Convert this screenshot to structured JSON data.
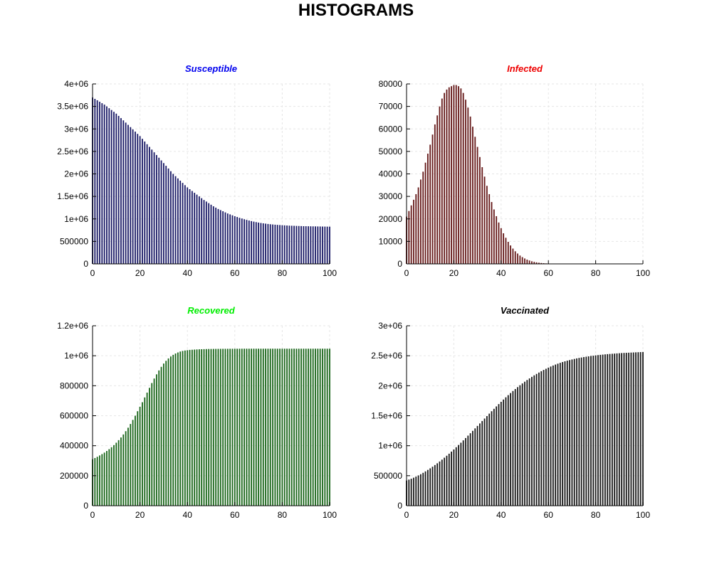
{
  "figure": {
    "title": "HISTOGRAMS"
  },
  "chart_data": [
    {
      "type": "bar",
      "title": "Susceptible",
      "title_color": "#0000ee",
      "bar_color": "#1a1a66",
      "xlabel": "",
      "ylabel": "",
      "xlim": [
        0,
        100
      ],
      "ylim": [
        0,
        4000000
      ],
      "xticks": [
        "0",
        "20",
        "40",
        "60",
        "80",
        "100"
      ],
      "yticks": [
        "0",
        "500000",
        "1e+06",
        "1.5e+06",
        "2e+06",
        "2.5e+06",
        "3e+06",
        "3.5e+06",
        "4e+06"
      ],
      "grid": true,
      "x": [
        0,
        1,
        2,
        3,
        4,
        5,
        6,
        7,
        8,
        9,
        10,
        11,
        12,
        13,
        14,
        15,
        16,
        17,
        18,
        19,
        20,
        21,
        22,
        23,
        24,
        25,
        26,
        27,
        28,
        29,
        30,
        31,
        32,
        33,
        34,
        35,
        36,
        37,
        38,
        39,
        40,
        41,
        42,
        43,
        44,
        45,
        46,
        47,
        48,
        49,
        50,
        51,
        52,
        53,
        54,
        55,
        56,
        57,
        58,
        59,
        60,
        61,
        62,
        63,
        64,
        65,
        66,
        67,
        68,
        69,
        70,
        71,
        72,
        73,
        74,
        75,
        76,
        77,
        78,
        79,
        80,
        81,
        82,
        83,
        84,
        85,
        86,
        87,
        88,
        89,
        90,
        91,
        92,
        93,
        94,
        95,
        96,
        97,
        98,
        99,
        100
      ],
      "values": [
        3700000,
        3668000,
        3636000,
        3604000,
        3572000,
        3540000,
        3500000,
        3460000,
        3420000,
        3380000,
        3340000,
        3290000,
        3240000,
        3190000,
        3140000,
        3090000,
        3040000,
        2990000,
        2940000,
        2890000,
        2840000,
        2780000,
        2720000,
        2660000,
        2600000,
        2540000,
        2480000,
        2420000,
        2360000,
        2300000,
        2240000,
        2180000,
        2120000,
        2060000,
        2000000,
        1950000,
        1900000,
        1850000,
        1800000,
        1750000,
        1700000,
        1660000,
        1620000,
        1580000,
        1540000,
        1500000,
        1460000,
        1420000,
        1385000,
        1350000,
        1315000,
        1280000,
        1250000,
        1220000,
        1195000,
        1170000,
        1145000,
        1120000,
        1100000,
        1080000,
        1060000,
        1042000,
        1024000,
        1008000,
        992000,
        978000,
        964000,
        951000,
        939000,
        928000,
        918000,
        909000,
        901000,
        894000,
        887000,
        881000,
        876000,
        871000,
        867000,
        863000,
        859000,
        856000,
        853000,
        850000,
        848000,
        846000,
        844000,
        842000,
        840000,
        838000,
        837000,
        836000,
        835000,
        834000,
        833000,
        832000,
        831000,
        830000,
        829000,
        828000,
        827000
      ]
    },
    {
      "type": "bar",
      "title": "Infected",
      "title_color": "#ee0000",
      "bar_color": "#661a1a",
      "xlabel": "",
      "ylabel": "",
      "xlim": [
        0,
        100
      ],
      "ylim": [
        0,
        80000
      ],
      "xticks": [
        "0",
        "20",
        "40",
        "60",
        "80",
        "100"
      ],
      "yticks": [
        "0",
        "10000",
        "20000",
        "30000",
        "40000",
        "50000",
        "60000",
        "70000",
        "80000"
      ],
      "grid": true,
      "x": [
        0,
        1,
        2,
        3,
        4,
        5,
        6,
        7,
        8,
        9,
        10,
        11,
        12,
        13,
        14,
        15,
        16,
        17,
        18,
        19,
        20,
        21,
        22,
        23,
        24,
        25,
        26,
        27,
        28,
        29,
        30,
        31,
        32,
        33,
        34,
        35,
        36,
        37,
        38,
        39,
        40,
        41,
        42,
        43,
        44,
        45,
        46,
        47,
        48,
        49,
        50,
        51,
        52,
        53,
        54,
        55,
        56,
        57,
        58,
        59,
        60,
        61,
        62,
        63,
        64,
        65,
        66,
        67,
        68,
        69,
        70,
        71,
        72,
        73,
        74,
        75,
        76,
        77,
        78,
        79,
        80,
        81,
        82,
        83,
        84,
        85,
        86,
        87,
        88,
        89,
        90,
        91,
        92,
        93,
        94,
        95,
        96,
        97,
        98,
        99,
        100
      ],
      "values": [
        21000,
        23500,
        26000,
        28500,
        31000,
        34000,
        37500,
        41000,
        45000,
        49000,
        53000,
        57500,
        62000,
        66000,
        70000,
        73500,
        76000,
        77500,
        78500,
        79000,
        79500,
        79500,
        79000,
        78000,
        76000,
        73000,
        69500,
        65500,
        61000,
        56500,
        52000,
        47500,
        43000,
        38800,
        34700,
        31000,
        27500,
        24200,
        21200,
        18400,
        15900,
        13600,
        11600,
        9800,
        8200,
        6800,
        5600,
        4600,
        3700,
        3000,
        2400,
        1900,
        1500,
        1150,
        900,
        690,
        520,
        390,
        290,
        210,
        150,
        110,
        80,
        57,
        40,
        28,
        19,
        13,
        9,
        6,
        4,
        3,
        2,
        1,
        1,
        1,
        0,
        0,
        0,
        0,
        0,
        0,
        0,
        0,
        0,
        0,
        0,
        0,
        0,
        0,
        0,
        0,
        0,
        0,
        0,
        0,
        0,
        0,
        0,
        0,
        0
      ]
    },
    {
      "type": "bar",
      "title": "Recovered",
      "title_color": "#00ee00",
      "bar_color": "#1a661a",
      "xlabel": "",
      "ylabel": "",
      "xlim": [
        0,
        100
      ],
      "ylim": [
        0,
        1200000
      ],
      "xticks": [
        "0",
        "20",
        "40",
        "60",
        "80",
        "100"
      ],
      "yticks": [
        "0",
        "200000",
        "400000",
        "600000",
        "800000",
        "1e+06",
        "1.2e+06"
      ],
      "grid": true,
      "x": [
        0,
        1,
        2,
        3,
        4,
        5,
        6,
        7,
        8,
        9,
        10,
        11,
        12,
        13,
        14,
        15,
        16,
        17,
        18,
        19,
        20,
        21,
        22,
        23,
        24,
        25,
        26,
        27,
        28,
        29,
        30,
        31,
        32,
        33,
        34,
        35,
        36,
        37,
        38,
        39,
        40,
        41,
        42,
        43,
        44,
        45,
        46,
        47,
        48,
        49,
        50,
        51,
        52,
        53,
        54,
        55,
        56,
        57,
        58,
        59,
        60,
        61,
        62,
        63,
        64,
        65,
        66,
        67,
        68,
        69,
        70,
        71,
        72,
        73,
        74,
        75,
        76,
        77,
        78,
        79,
        80,
        81,
        82,
        83,
        84,
        85,
        86,
        87,
        88,
        89,
        90,
        91,
        92,
        93,
        94,
        95,
        96,
        97,
        98,
        99,
        100
      ],
      "values": [
        310000,
        318000,
        326000,
        335000,
        344000,
        354000,
        365000,
        377000,
        390000,
        404000,
        420000,
        437000,
        455000,
        475000,
        497000,
        520000,
        545000,
        572000,
        600000,
        630000,
        660000,
        690000,
        722000,
        754000,
        786000,
        818000,
        848000,
        876000,
        902000,
        926000,
        948000,
        966000,
        982000,
        995000,
        1006000,
        1015000,
        1022000,
        1028000,
        1032000,
        1035000,
        1037000,
        1039000,
        1040000,
        1041000,
        1042000,
        1043000,
        1043500,
        1044000,
        1044500,
        1045000,
        1045200,
        1045400,
        1045600,
        1045800,
        1046000,
        1046100,
        1046200,
        1046300,
        1046400,
        1046500,
        1046600,
        1046700,
        1046800,
        1046900,
        1047000,
        1047000,
        1047000,
        1047000,
        1047000,
        1047000,
        1047000,
        1047000,
        1047000,
        1047000,
        1047000,
        1047000,
        1047000,
        1047000,
        1047000,
        1047000,
        1047000,
        1047000,
        1047000,
        1047000,
        1047000,
        1047000,
        1047000,
        1047000,
        1047000,
        1047000,
        1047000,
        1047000,
        1047000,
        1047000,
        1047000,
        1047000,
        1047000,
        1047000,
        1047000,
        1047000,
        1047000
      ]
    },
    {
      "type": "bar",
      "title": "Vaccinated",
      "title_color": "#000000",
      "bar_color": "#1a1a1a",
      "xlabel": "",
      "ylabel": "",
      "xlim": [
        0,
        100
      ],
      "ylim": [
        0,
        3000000
      ],
      "xticks": [
        "0",
        "20",
        "40",
        "60",
        "80",
        "100"
      ],
      "yticks": [
        "0",
        "500000",
        "1e+06",
        "1.5e+06",
        "2e+06",
        "2.5e+06",
        "3e+06"
      ],
      "grid": true,
      "x": [
        0,
        1,
        2,
        3,
        4,
        5,
        6,
        7,
        8,
        9,
        10,
        11,
        12,
        13,
        14,
        15,
        16,
        17,
        18,
        19,
        20,
        21,
        22,
        23,
        24,
        25,
        26,
        27,
        28,
        29,
        30,
        31,
        32,
        33,
        34,
        35,
        36,
        37,
        38,
        39,
        40,
        41,
        42,
        43,
        44,
        45,
        46,
        47,
        48,
        49,
        50,
        51,
        52,
        53,
        54,
        55,
        56,
        57,
        58,
        59,
        60,
        61,
        62,
        63,
        64,
        65,
        66,
        67,
        68,
        69,
        70,
        71,
        72,
        73,
        74,
        75,
        76,
        77,
        78,
        79,
        80,
        81,
        82,
        83,
        84,
        85,
        86,
        87,
        88,
        89,
        90,
        91,
        92,
        93,
        94,
        95,
        96,
        97,
        98,
        99,
        100
      ],
      "values": [
        420000,
        435000,
        450000,
        467000,
        485000,
        505000,
        525000,
        548000,
        572000,
        597000,
        623000,
        650000,
        678000,
        707000,
        737000,
        768000,
        800000,
        833000,
        867000,
        902000,
        938000,
        975000,
        1012000,
        1050000,
        1089000,
        1128000,
        1168000,
        1208000,
        1248000,
        1289000,
        1330000,
        1371000,
        1412000,
        1453000,
        1494000,
        1535000,
        1575000,
        1615000,
        1655000,
        1694000,
        1732000,
        1770000,
        1807000,
        1843000,
        1878000,
        1912000,
        1945000,
        1977000,
        2008000,
        2038000,
        2067000,
        2095000,
        2122000,
        2148000,
        2173000,
        2197000,
        2220000,
        2242000,
        2263000,
        2283000,
        2302000,
        2320000,
        2337000,
        2353000,
        2368000,
        2382000,
        2395000,
        2407000,
        2418000,
        2428000,
        2438000,
        2447000,
        2456000,
        2464000,
        2471000,
        2478000,
        2484000,
        2490000,
        2496000,
        2501000,
        2506000,
        2511000,
        2515000,
        2519000,
        2523000,
        2527000,
        2530000,
        2533000,
        2536000,
        2539000,
        2542000,
        2545000,
        2547000,
        2549000,
        2551000,
        2553000,
        2555000,
        2557000,
        2559000,
        2561000,
        2562000
      ]
    }
  ]
}
